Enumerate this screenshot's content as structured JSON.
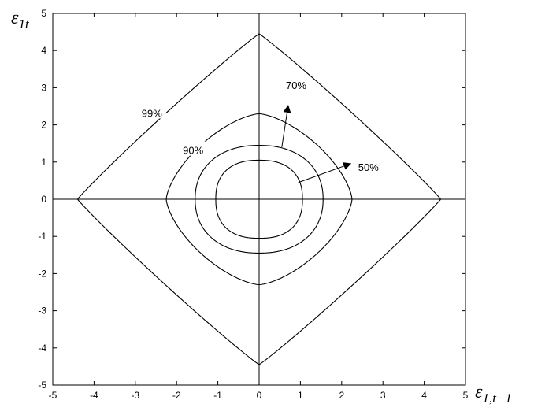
{
  "chart_data": {
    "type": "line",
    "xlim": [
      -5,
      5
    ],
    "ylim": [
      -5,
      5
    ],
    "x_ticks": [
      -5,
      -4,
      -3,
      -2,
      -1,
      0,
      1,
      2,
      3,
      4,
      5
    ],
    "y_ticks": [
      -5,
      -4,
      -3,
      -2,
      -1,
      0,
      1,
      2,
      3,
      4,
      5
    ],
    "xlabel": {
      "base": "ε",
      "sub": "1,t−1"
    },
    "ylabel": {
      "base": "ε",
      "sub": "1t"
    },
    "grid": false,
    "reference_lines": {
      "x": 0,
      "y": 0
    },
    "contours": [
      {
        "label": "50%",
        "shape_power": 2.4,
        "points": [
          [
            1.05,
            0
          ],
          [
            0,
            1.05
          ],
          [
            -1.05,
            0
          ],
          [
            0,
            -1.05
          ]
        ]
      },
      {
        "label": "70%",
        "shape_power": 2.2,
        "points": [
          [
            1.55,
            0
          ],
          [
            0,
            1.45
          ],
          [
            -1.55,
            0
          ],
          [
            0,
            -1.45
          ]
        ]
      },
      {
        "label": "90%",
        "shape_power": 1.5,
        "points": [
          [
            2.25,
            0
          ],
          [
            0,
            2.3
          ],
          [
            -2.25,
            0
          ],
          [
            0,
            -2.3
          ]
        ]
      },
      {
        "label": "99%",
        "shape_power": 1.05,
        "points": [
          [
            4.4,
            0
          ],
          [
            0,
            4.45
          ],
          [
            -4.4,
            0
          ],
          [
            0,
            -4.45
          ]
        ]
      }
    ],
    "annotations": [
      {
        "text": "99%",
        "x": -2.6,
        "y": 2.3
      },
      {
        "text": "90%",
        "x": -1.6,
        "y": 1.3
      },
      {
        "text": "70%",
        "x": 0.65,
        "y": 3.05,
        "arrow_from": [
          0.55,
          1.4
        ],
        "arrow_to": [
          0.7,
          2.5
        ]
      },
      {
        "text": "50%",
        "x": 2.4,
        "y": 0.85,
        "arrow_from": [
          0.95,
          0.45
        ],
        "arrow_to": [
          2.2,
          0.95
        ]
      }
    ]
  }
}
